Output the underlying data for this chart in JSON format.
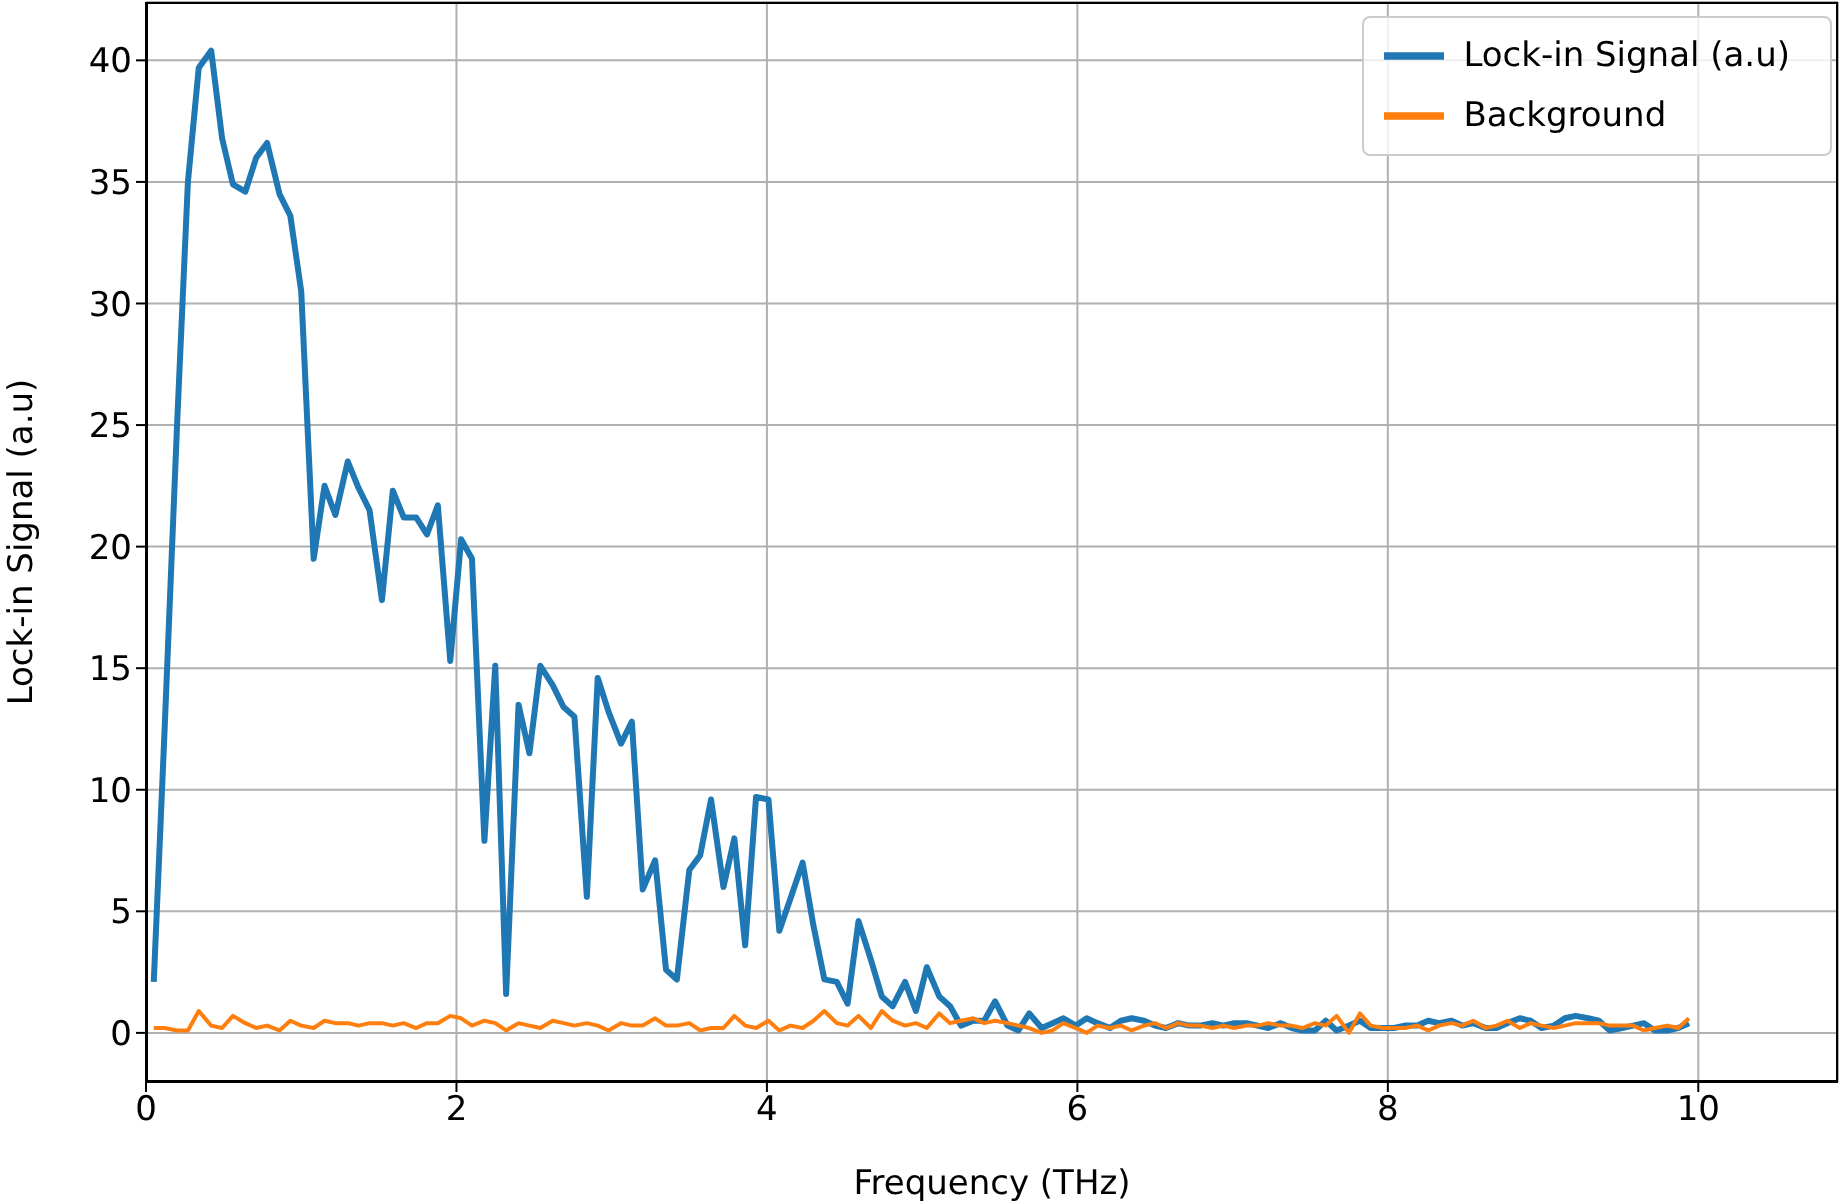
{
  "chart_data": {
    "type": "line",
    "xlabel": "Frequency (THz)",
    "ylabel": "Lock-in Signal (a.u)",
    "x": [
      0.05,
      0.12,
      0.2,
      0.27,
      0.34,
      0.42,
      0.49,
      0.56,
      0.64,
      0.71,
      0.78,
      0.86,
      0.93,
      1.0,
      1.08,
      1.15,
      1.22,
      1.3,
      1.37,
      1.44,
      1.52,
      1.59,
      1.66,
      1.74,
      1.81,
      1.88,
      1.96,
      2.03,
      2.1,
      2.18,
      2.25,
      2.32,
      2.4,
      2.47,
      2.54,
      2.62,
      2.69,
      2.76,
      2.84,
      2.91,
      2.98,
      3.06,
      3.13,
      3.2,
      3.28,
      3.35,
      3.42,
      3.5,
      3.57,
      3.64,
      3.72,
      3.79,
      3.86,
      3.93,
      4.01,
      4.08,
      4.15,
      4.23,
      4.3,
      4.37,
      4.45,
      4.52,
      4.59,
      4.67,
      4.74,
      4.81,
      4.89,
      4.96,
      5.03,
      5.11,
      5.18,
      5.25,
      5.33,
      5.4,
      5.47,
      5.55,
      5.62,
      5.69,
      5.77,
      5.84,
      5.91,
      5.99,
      6.06,
      6.13,
      6.21,
      6.28,
      6.35,
      6.43,
      6.5,
      6.57,
      6.65,
      6.72,
      6.79,
      6.87,
      6.94,
      7.01,
      7.09,
      7.16,
      7.23,
      7.31,
      7.38,
      7.45,
      7.53,
      7.6,
      7.67,
      7.75,
      7.82,
      7.89,
      7.97,
      8.04,
      8.11,
      8.19,
      8.26,
      8.33,
      8.41,
      8.48,
      8.55,
      8.63,
      8.7,
      8.77,
      8.85,
      8.92,
      8.99,
      9.07,
      9.14,
      9.21,
      9.29,
      9.36,
      9.43,
      9.51,
      9.58,
      9.65,
      9.72,
      9.8,
      9.87,
      9.94
    ],
    "series": [
      {
        "name": "Lock-in Signal (a.u)",
        "color": "#1f77b4",
        "values": [
          2.1,
          12.5,
          25,
          35,
          39.7,
          40.4,
          36.8,
          34.9,
          34.6,
          36.0,
          36.6,
          34.5,
          33.6,
          30.5,
          19.5,
          22.5,
          21.3,
          23.5,
          22.4,
          21.5,
          17.8,
          22.3,
          21.2,
          21.2,
          20.5,
          21.7,
          15.3,
          20.3,
          19.5,
          7.9,
          15.1,
          1.6,
          13.5,
          11.5,
          15.1,
          14.3,
          13.4,
          13.0,
          5.6,
          14.6,
          13.2,
          11.9,
          12.8,
          5.9,
          7.1,
          2.6,
          2.2,
          6.7,
          7.3,
          9.6,
          6.0,
          8.0,
          3.6,
          9.7,
          9.6,
          4.2,
          5.5,
          7.0,
          4.4,
          2.2,
          2.1,
          1.2,
          4.6,
          3.0,
          1.5,
          1.1,
          2.1,
          0.9,
          2.7,
          1.5,
          1.1,
          0.3,
          0.5,
          0.5,
          1.3,
          0.3,
          0.1,
          0.8,
          0.2,
          0.4,
          0.6,
          0.3,
          0.6,
          0.4,
          0.2,
          0.5,
          0.6,
          0.5,
          0.3,
          0.2,
          0.4,
          0.3,
          0.3,
          0.4,
          0.3,
          0.4,
          0.4,
          0.3,
          0.2,
          0.4,
          0.2,
          0.1,
          0.1,
          0.5,
          0.1,
          0.3,
          0.5,
          0.2,
          0.2,
          0.2,
          0.3,
          0.3,
          0.5,
          0.4,
          0.5,
          0.3,
          0.4,
          0.2,
          0.2,
          0.4,
          0.6,
          0.5,
          0.2,
          0.3,
          0.6,
          0.7,
          0.6,
          0.5,
          0.1,
          0.2,
          0.3,
          0.4,
          0.1,
          0.1,
          0.2,
          0.4
        ]
      },
      {
        "name": "Background",
        "color": "#ff7f0e",
        "values": [
          0.2,
          0.2,
          0.1,
          0.1,
          0.9,
          0.3,
          0.2,
          0.7,
          0.4,
          0.2,
          0.3,
          0.1,
          0.5,
          0.3,
          0.2,
          0.5,
          0.4,
          0.4,
          0.3,
          0.4,
          0.4,
          0.3,
          0.4,
          0.2,
          0.4,
          0.4,
          0.7,
          0.6,
          0.3,
          0.5,
          0.4,
          0.1,
          0.4,
          0.3,
          0.2,
          0.5,
          0.4,
          0.3,
          0.4,
          0.3,
          0.1,
          0.4,
          0.3,
          0.3,
          0.6,
          0.3,
          0.3,
          0.4,
          0.1,
          0.2,
          0.2,
          0.7,
          0.3,
          0.2,
          0.5,
          0.1,
          0.3,
          0.2,
          0.5,
          0.9,
          0.4,
          0.3,
          0.7,
          0.2,
          0.9,
          0.5,
          0.3,
          0.4,
          0.2,
          0.8,
          0.4,
          0.5,
          0.6,
          0.4,
          0.5,
          0.4,
          0.3,
          0.2,
          0.0,
          0.1,
          0.4,
          0.2,
          0.0,
          0.3,
          0.2,
          0.3,
          0.1,
          0.3,
          0.4,
          0.2,
          0.4,
          0.3,
          0.3,
          0.2,
          0.3,
          0.2,
          0.3,
          0.3,
          0.4,
          0.3,
          0.3,
          0.2,
          0.4,
          0.3,
          0.7,
          0.0,
          0.8,
          0.3,
          0.2,
          0.2,
          0.2,
          0.3,
          0.1,
          0.3,
          0.4,
          0.3,
          0.5,
          0.2,
          0.3,
          0.5,
          0.2,
          0.4,
          0.3,
          0.2,
          0.3,
          0.4,
          0.4,
          0.4,
          0.3,
          0.3,
          0.3,
          0.1,
          0.2,
          0.3,
          0.2,
          0.6
        ]
      }
    ],
    "xlim": [
      0,
      10.9
    ],
    "xticks": [
      0,
      2,
      4,
      6,
      8,
      10
    ],
    "ylim": [
      -2.02,
      42.4
    ],
    "yticks": [
      0,
      5,
      10,
      15,
      20,
      25,
      30,
      35,
      40
    ],
    "grid": true,
    "legend": "top right",
    "marker": "none",
    "line_style": "solid"
  }
}
